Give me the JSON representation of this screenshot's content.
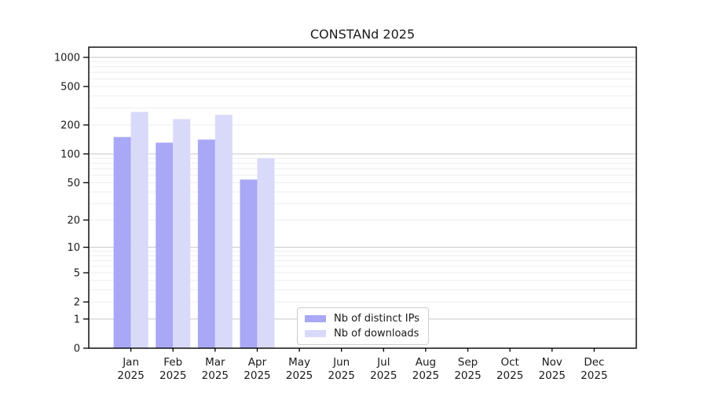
{
  "title": "CONSTANd 2025",
  "chart_data": {
    "type": "bar",
    "title": "CONSTANd 2025",
    "y_scale": "symlog(ln(1+v))",
    "grid": "on",
    "legend_position": "lower center",
    "year_label": "2025",
    "categories": [
      "Jan",
      "Feb",
      "Mar",
      "Apr",
      "May",
      "Jun",
      "Jul",
      "Aug",
      "Sep",
      "Oct",
      "Nov",
      "Dec"
    ],
    "series": [
      {
        "name": "Nb of distinct IPs",
        "color": "#a8a8f7",
        "values": [
          150,
          131,
          141,
          54,
          0,
          0,
          0,
          0,
          0,
          0,
          0,
          0
        ]
      },
      {
        "name": "Nb of downloads",
        "color": "#d9d9fa",
        "values": [
          273,
          230,
          255,
          90,
          0,
          0,
          0,
          0,
          0,
          0,
          0,
          0
        ]
      }
    ],
    "y_ticks": [
      0,
      1,
      2,
      5,
      10,
      20,
      50,
      100,
      200,
      500,
      1000
    ],
    "ylim": [
      0,
      1280
    ],
    "xlabel": "",
    "ylabel": ""
  },
  "colors": {
    "axis": "#000000",
    "grid_minor": "#ededed",
    "grid_major": "#c6c6c6",
    "tick_label": "#1a1a1a",
    "legend_border": "#cccccc"
  }
}
